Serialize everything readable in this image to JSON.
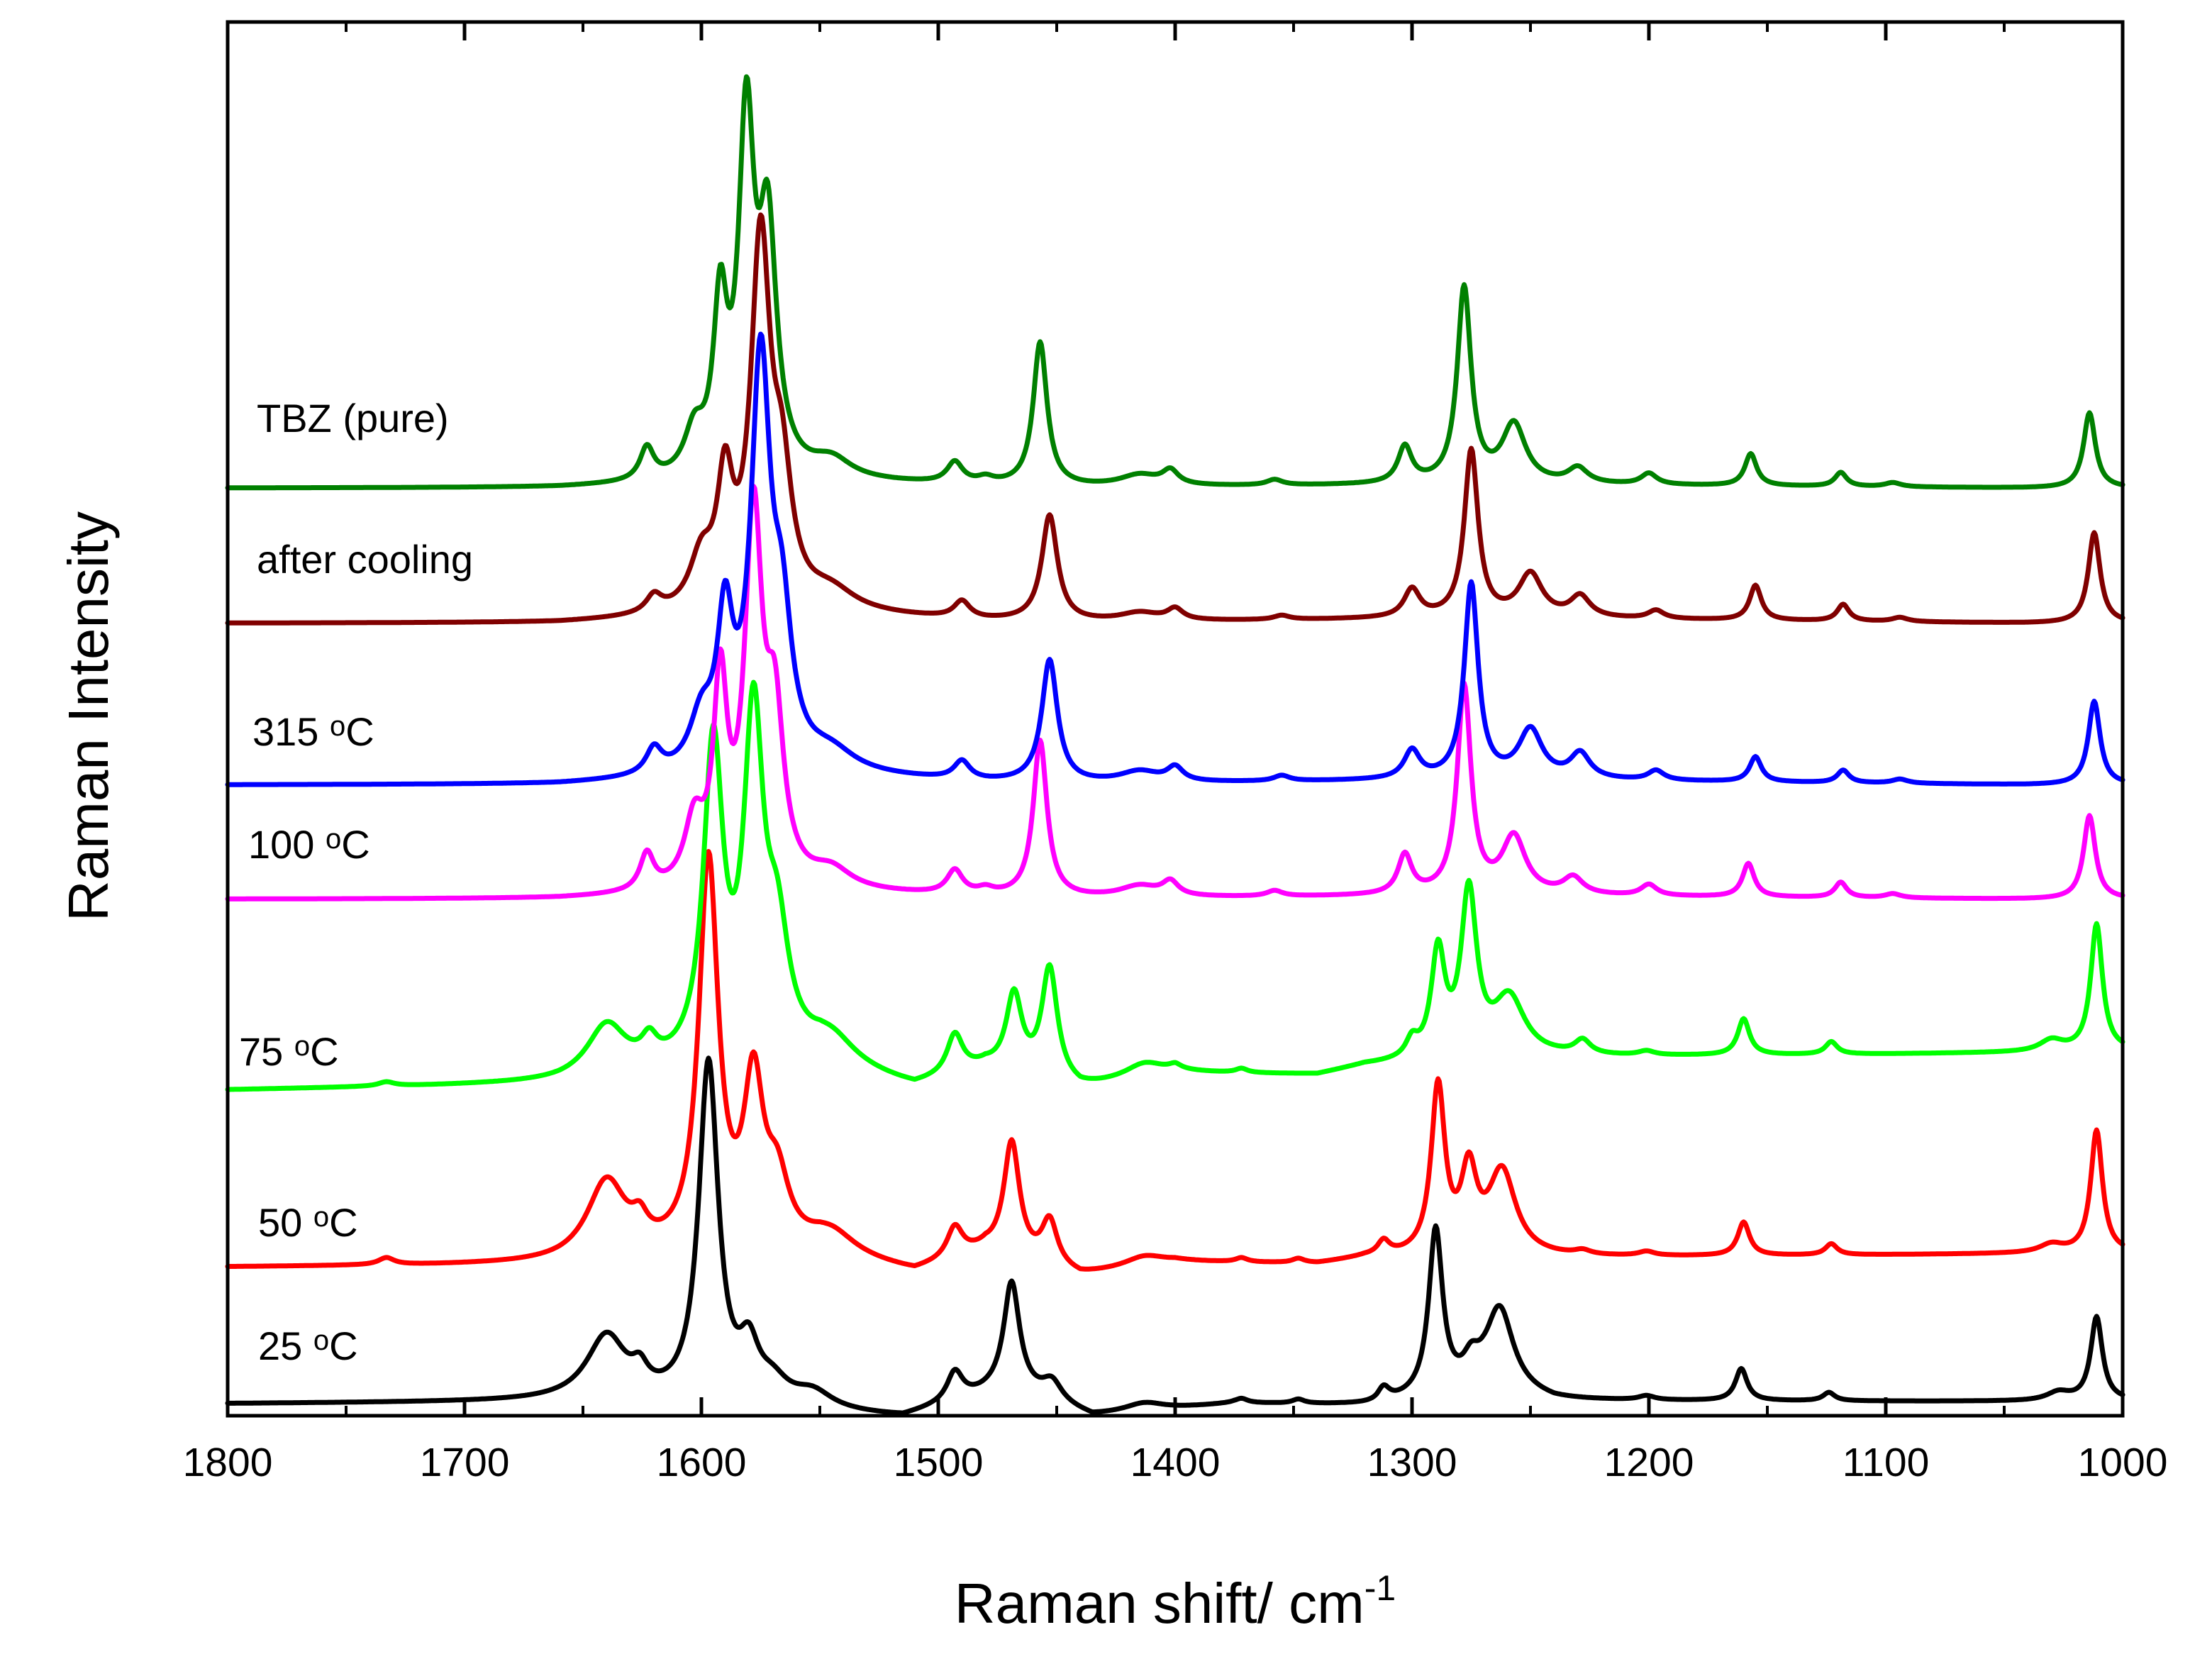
{
  "chart_data": {
    "type": "line",
    "title": "",
    "xlabel": "Raman shift/ cm",
    "xlabel_superscript": "-1",
    "ylabel": "Raman Intensity",
    "xlim": [
      1800,
      1000
    ],
    "x_reversed": true,
    "ylim": [
      0,
      100
    ],
    "grid": false,
    "y_ticks_labeled": false,
    "x_ticks": [
      1800,
      1700,
      1600,
      1500,
      1400,
      1300,
      1200,
      1100,
      1000
    ],
    "x_tick_labels": [
      "1800",
      "1700",
      "1600",
      "1500",
      "1400",
      "1300",
      "1200",
      "1100",
      "1000"
    ],
    "series": [
      {
        "name": "25 °C",
        "label_main": "25 ",
        "label_sup": "o",
        "label_tail": "C",
        "color": "#000000",
        "baseline": 0,
        "start": 0.1,
        "end": 0.8,
        "base_shape": [
          [
            1650,
            0.7
          ],
          [
            1515,
            -0.6
          ],
          [
            1470,
            1.5
          ],
          [
            1435,
            -0.6
          ],
          [
            1375,
            0.3
          ],
          [
            1315,
            0.1
          ],
          [
            1270,
            1.2
          ],
          [
            1240,
            0.4
          ],
          [
            1040,
            0.2
          ]
        ],
        "peaks": [
          [
            1640,
            4.6,
            10
          ],
          [
            1626,
            1.4,
            4
          ],
          [
            1597,
            24.4,
            5
          ],
          [
            1580,
            3.5,
            5
          ],
          [
            1570,
            1.5,
            8
          ],
          [
            1553,
            1.2,
            10
          ],
          [
            1493,
            2.1,
            4
          ],
          [
            1469,
            7.5,
            4
          ],
          [
            1452,
            1.4,
            5
          ],
          [
            1413,
            0.6,
            10
          ],
          [
            1372,
            0.3,
            3
          ],
          [
            1348,
            0.3,
            3
          ],
          [
            1312,
            1.0,
            3
          ],
          [
            1290,
            11.8,
            3.5
          ],
          [
            1275,
            1.5,
            4
          ],
          [
            1263,
            5.9,
            7
          ],
          [
            1201,
            0.3,
            4
          ],
          [
            1161,
            2.3,
            3
          ],
          [
            1124,
            0.6,
            3
          ],
          [
            1027,
            0.6,
            6
          ],
          [
            1011,
            6.0,
            3
          ]
        ]
      },
      {
        "name": "50 °C",
        "label_main": "50 ",
        "label_sup": "o",
        "label_tail": "C",
        "color": "#ff0000",
        "baseline": 10.3,
        "start": 0.0,
        "end": 0.8,
        "base_shape": [
          [
            1660,
            0.3
          ],
          [
            1550,
            0.8
          ],
          [
            1510,
            -0.5
          ],
          [
            1480,
            1.0
          ],
          [
            1440,
            -0.8
          ],
          [
            1400,
            0.2
          ],
          [
            1340,
            0.0
          ],
          [
            1320,
            0.4
          ],
          [
            1240,
            0.4
          ],
          [
            1040,
            0.5
          ]
        ],
        "peaks": [
          [
            1733,
            0.5,
            4
          ],
          [
            1640,
            5.6,
            10
          ],
          [
            1626,
            1.5,
            4
          ],
          [
            1597,
            28.0,
            5
          ],
          [
            1578,
            11.5,
            5
          ],
          [
            1568,
            4.5,
            6
          ],
          [
            1545,
            1.5,
            12
          ],
          [
            1493,
            2.2,
            4
          ],
          [
            1469,
            8.2,
            4
          ],
          [
            1453,
            3.2,
            4
          ],
          [
            1413,
            0.7,
            10
          ],
          [
            1372,
            0.3,
            3
          ],
          [
            1348,
            0.3,
            3
          ],
          [
            1312,
            1.0,
            3
          ],
          [
            1289,
            12.0,
            3.5
          ],
          [
            1276,
            5.6,
            4
          ],
          [
            1262,
            6.0,
            7
          ],
          [
            1228,
            0.3,
            4
          ],
          [
            1201,
            0.3,
            4
          ],
          [
            1160,
            2.4,
            3
          ],
          [
            1123,
            0.8,
            3
          ],
          [
            1030,
            0.6,
            6
          ],
          [
            1011,
            8.8,
            3
          ]
        ]
      },
      {
        "name": "75 °C",
        "label_main": "75 ",
        "label_sup": "o",
        "label_tail": "C",
        "color": "#00ff00",
        "baseline": 23.0,
        "start": 0.0,
        "end": 2.3,
        "base_shape": [
          [
            1660,
            0.3
          ],
          [
            1550,
            1.2
          ],
          [
            1510,
            -0.5
          ],
          [
            1480,
            0.8
          ],
          [
            1440,
            -0.8
          ],
          [
            1400,
            0.3
          ],
          [
            1340,
            0.0
          ],
          [
            1320,
            0.6
          ],
          [
            1240,
            1.0
          ],
          [
            1040,
            0.8
          ]
        ],
        "peaks": [
          [
            1733,
            0.3,
            4
          ],
          [
            1640,
            3.7,
            10
          ],
          [
            1622,
            1.6,
            4
          ],
          [
            1595,
            22.5,
            5
          ],
          [
            1578,
            23.7,
            5
          ],
          [
            1568,
            8.0,
            6
          ],
          [
            1545,
            1.8,
            12
          ],
          [
            1493,
            2.8,
            4
          ],
          [
            1468,
            5.5,
            4
          ],
          [
            1453,
            8.0,
            4
          ],
          [
            1413,
            1.0,
            10
          ],
          [
            1400,
            0.3,
            3
          ],
          [
            1372,
            0.3,
            3
          ],
          [
            1300,
            1.2,
            3
          ],
          [
            1289,
            7.5,
            3.5
          ],
          [
            1276,
            11.7,
            4
          ],
          [
            1259,
            4.2,
            8
          ],
          [
            1228,
            1.0,
            4
          ],
          [
            1201,
            0.3,
            4
          ],
          [
            1160,
            2.6,
            3
          ],
          [
            1123,
            0.9,
            3
          ],
          [
            1030,
            0.8,
            6
          ],
          [
            1011,
            9.1,
            3
          ]
        ]
      },
      {
        "name": "100 °C",
        "label_main": "100 ",
        "label_sup": "o",
        "label_tail": "C",
        "color": "#ff00ff",
        "baseline": 37.0,
        "start": 0.0,
        "end": 0.0,
        "base_shape": [
          [
            1660,
            0.0
          ],
          [
            1550,
            0.4
          ],
          [
            1480,
            0.1
          ],
          [
            1440,
            0.0
          ],
          [
            1300,
            0.2
          ],
          [
            1230,
            0.2
          ],
          [
            1040,
            0.0
          ]
        ],
        "peaks": [
          [
            1623,
            2.6,
            3.5
          ],
          [
            1603,
            4.5,
            5
          ],
          [
            1592,
            14.0,
            3.5
          ],
          [
            1578,
            26.0,
            4.5
          ],
          [
            1569,
            11.0,
            4.5
          ],
          [
            1545,
            1.3,
            10
          ],
          [
            1493,
            1.7,
            4
          ],
          [
            1480,
            0.4,
            4
          ],
          [
            1457,
            11.2,
            3.5
          ],
          [
            1415,
            0.8,
            10
          ],
          [
            1402,
            1.0,
            4
          ],
          [
            1358,
            0.4,
            4
          ],
          [
            1303,
            2.8,
            3.5
          ],
          [
            1278,
            14.9,
            3.5
          ],
          [
            1257,
            4.1,
            6
          ],
          [
            1232,
            1.2,
            5
          ],
          [
            1200,
            0.8,
            4
          ],
          [
            1158,
            2.4,
            3
          ],
          [
            1119,
            1.1,
            3
          ],
          [
            1097,
            0.3,
            4
          ],
          [
            1014,
            6.0,
            3
          ]
        ]
      },
      {
        "name": "315 °C",
        "label_main": "315 ",
        "label_sup": "o",
        "label_tail": "C",
        "color": "#0000ff",
        "baseline": 45.2,
        "start": 0.0,
        "end": 0.0,
        "base_shape": [
          [
            1660,
            0.0
          ],
          [
            1550,
            0.6
          ],
          [
            1480,
            0.1
          ],
          [
            1440,
            0.0
          ],
          [
            1300,
            0.3
          ],
          [
            1230,
            0.3
          ],
          [
            1040,
            0.0
          ]
        ],
        "peaks": [
          [
            1620,
            1.8,
            4
          ],
          [
            1600,
            3.5,
            6
          ],
          [
            1590,
            10.0,
            4
          ],
          [
            1575,
            28.7,
            5
          ],
          [
            1566,
            9.0,
            5
          ],
          [
            1545,
            1.3,
            12
          ],
          [
            1490,
            1.3,
            4
          ],
          [
            1453,
            8.8,
            4
          ],
          [
            1415,
            0.8,
            10
          ],
          [
            1400,
            1.0,
            4
          ],
          [
            1355,
            0.4,
            4
          ],
          [
            1300,
            2.0,
            4
          ],
          [
            1275,
            14.0,
            3.5
          ],
          [
            1250,
            3.5,
            6
          ],
          [
            1229,
            1.8,
            5
          ],
          [
            1197,
            0.7,
            4
          ],
          [
            1155,
            1.8,
            3
          ],
          [
            1118,
            0.9,
            3
          ],
          [
            1094,
            0.3,
            4
          ],
          [
            1012,
            6.0,
            3
          ]
        ]
      },
      {
        "name": "after cooling",
        "label_main": "after cooling",
        "label_sup": "",
        "label_tail": "",
        "color": "#800000",
        "baseline": 56.8,
        "start": 0.0,
        "end": 0.0,
        "base_shape": [
          [
            1660,
            0.0
          ],
          [
            1550,
            0.6
          ],
          [
            1480,
            0.1
          ],
          [
            1440,
            0.0
          ],
          [
            1300,
            0.3
          ],
          [
            1230,
            0.3
          ],
          [
            1040,
            0.0
          ]
        ],
        "peaks": [
          [
            1620,
            1.2,
            4
          ],
          [
            1600,
            3.5,
            6
          ],
          [
            1590,
            8.4,
            4
          ],
          [
            1575,
            26.0,
            5
          ],
          [
            1566,
            8.0,
            5
          ],
          [
            1545,
            1.3,
            12
          ],
          [
            1490,
            1.2,
            4
          ],
          [
            1453,
            7.6,
            4
          ],
          [
            1415,
            0.6,
            10
          ],
          [
            1400,
            0.8,
            4
          ],
          [
            1355,
            0.3,
            4
          ],
          [
            1300,
            2.0,
            4
          ],
          [
            1275,
            12.0,
            3.5
          ],
          [
            1250,
            3.1,
            6
          ],
          [
            1229,
            1.5,
            5
          ],
          [
            1197,
            0.6,
            4
          ],
          [
            1155,
            2.5,
            3
          ],
          [
            1118,
            1.2,
            3
          ],
          [
            1094,
            0.3,
            4
          ],
          [
            1012,
            6.5,
            3
          ]
        ]
      },
      {
        "name": "TBZ (pure)",
        "label_main": "TBZ (pure)",
        "label_sup": "",
        "label_tail": "",
        "color": "#008000",
        "baseline": 66.5,
        "start": 0.0,
        "end": 0.0,
        "base_shape": [
          [
            1660,
            0.0
          ],
          [
            1550,
            0.4
          ],
          [
            1480,
            0.1
          ],
          [
            1440,
            0.0
          ],
          [
            1300,
            0.2
          ],
          [
            1230,
            0.2
          ],
          [
            1040,
            0.0
          ]
        ],
        "peaks": [
          [
            1623,
            2.3,
            3.5
          ],
          [
            1603,
            3.0,
            5
          ],
          [
            1592,
            11.5,
            3.5
          ],
          [
            1581,
            24.5,
            4
          ],
          [
            1572,
            17.0,
            4.5
          ],
          [
            1545,
            1.3,
            10
          ],
          [
            1493,
            1.5,
            4
          ],
          [
            1480,
            0.4,
            4
          ],
          [
            1457,
            10.3,
            3.5
          ],
          [
            1415,
            0.8,
            10
          ],
          [
            1402,
            1.0,
            4
          ],
          [
            1358,
            0.4,
            4
          ],
          [
            1303,
            2.6,
            3.5
          ],
          [
            1278,
            14.0,
            3.5
          ],
          [
            1257,
            4.2,
            6
          ],
          [
            1230,
            1.1,
            5
          ],
          [
            1200,
            0.8,
            4
          ],
          [
            1157,
            2.3,
            3
          ],
          [
            1119,
            1.0,
            3
          ],
          [
            1097,
            0.3,
            4
          ],
          [
            1014,
            5.4,
            3
          ]
        ]
      }
    ]
  }
}
